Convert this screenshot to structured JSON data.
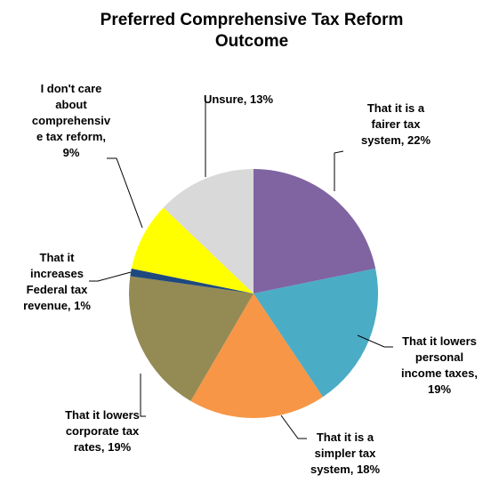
{
  "chart_data": {
    "type": "pie",
    "title": "Preferred Comprehensive Tax Reform Outcome",
    "title_lines": [
      "Preferred Comprehensive Tax Reform",
      "Outcome"
    ],
    "start_angle_deg": 0,
    "direction": "clockwise",
    "legend": "none",
    "slices": [
      {
        "category": "That it is a fairer tax system",
        "value": 22,
        "color": "#8064a2",
        "label_lines": [
          "That it is a",
          "fairer tax",
          "system, 22%"
        ]
      },
      {
        "category": "That it lowers personal income taxes",
        "value": 19,
        "color": "#4bacc6",
        "label_lines": [
          "That it lowers",
          "personal",
          "income taxes,",
          "19%"
        ]
      },
      {
        "category": "That it is a simpler tax system",
        "value": 18,
        "color": "#f79646",
        "label_lines": [
          "That it is a",
          "simpler tax",
          "system, 18%"
        ]
      },
      {
        "category": "That it lowers corporate tax rates",
        "value": 19,
        "color": "#948a54",
        "label_lines": [
          "That it lowers",
          "corporate tax",
          "rates, 19%"
        ]
      },
      {
        "category": "That it increases Federal tax revenue",
        "value": 1,
        "color": "#1f497d",
        "label_lines": [
          "That it",
          "increases",
          "Federal tax",
          "revenue, 1%"
        ]
      },
      {
        "category": "I don't care about comprehensive tax reform",
        "value": 9,
        "color": "#ffff00",
        "label_lines": [
          "I don't care",
          "about",
          "comprehensiv",
          "e tax reform,",
          "9%"
        ]
      },
      {
        "category": "Unsure",
        "value": 13,
        "color": "#d9d9d9",
        "label_lines": [
          "Unsure, 13%"
        ]
      }
    ]
  }
}
